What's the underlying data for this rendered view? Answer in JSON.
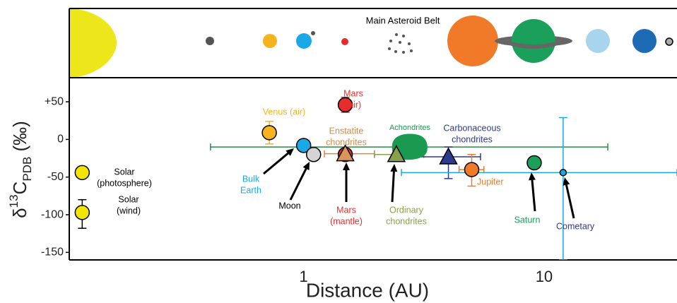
{
  "chart_data": {
    "type": "scatter",
    "banner_label": "Main Asteroid Belt",
    "xlabel": "Distance (AU)",
    "ylabel": [
      "δ",
      "13",
      "C",
      "PDB",
      " (‰)"
    ],
    "xscale": "log",
    "xlim": [
      0.106,
      35.7
    ],
    "ylim": [
      -160,
      82
    ],
    "xticks": [
      1,
      10
    ],
    "yticks": [
      {
        "value": 50,
        "label": "+50"
      },
      0,
      -50,
      -100,
      -150
    ],
    "points": [
      {
        "label": [
          "Solar",
          "(photosphere)"
        ],
        "x": 0.12,
        "y": -44,
        "marker": "circle",
        "color": "#f2e600",
        "label_color": "#000000"
      },
      {
        "label": [
          "Solar",
          "(wind)"
        ],
        "x": 0.12,
        "y": -97,
        "yrange": [
          -118,
          -80
        ],
        "marker": "circle",
        "color": "#f2e600",
        "label_color": "#000000",
        "err_color": "#000000"
      },
      {
        "label": [
          "Venus (air)"
        ],
        "x": 0.72,
        "y": 9,
        "yrange": [
          -6,
          24
        ],
        "marker": "circle",
        "color": "#f5b41e",
        "label_color": "#f5b41e",
        "err_color": "#f5b41e"
      },
      {
        "label": [
          "Mars",
          "(air)"
        ],
        "x": 1.49,
        "y": 46,
        "yrange": [
          36,
          56
        ],
        "marker": "circle",
        "color": "#e52d2d",
        "label_color": "#e52d2d",
        "err_color": "#e52d2d"
      },
      {
        "label": [
          "Bulk",
          "Earth"
        ],
        "x": 1.0,
        "y": -8,
        "marker": "circle",
        "color": "#1aa9e6",
        "label_color": "#1aa9e6"
      },
      {
        "label": [
          "Moon"
        ],
        "x": 1.1,
        "y": -20,
        "marker": "circle",
        "color": "#d4d4d4",
        "label_color": "#000000"
      },
      {
        "label": [
          "Mars",
          "(mantle)"
        ],
        "x": 1.49,
        "y": -20,
        "marker": "circle",
        "color": "#e52d2d",
        "label_color": "#e52d2d"
      },
      {
        "label": [
          "Enstatite",
          "chondrites"
        ],
        "x": 1.49,
        "y": -19,
        "xrange": [
          1.22,
          1.97
        ],
        "marker": "triangle",
        "color": "#d9955a",
        "label_color": "#d08a4a",
        "err_color": "#e0883a"
      },
      {
        "label": [
          "Achondrites"
        ],
        "x": 2.76,
        "y": -10,
        "xrange": [
          0.41,
          18.4
        ],
        "marker": "blob",
        "color": "#1a9a50",
        "label_color": "#1a9a50",
        "err_color": "#2a8a4a"
      },
      {
        "label": [
          "Ordinary",
          "chondrites"
        ],
        "x": 2.43,
        "y": -20,
        "xrange": [
          1.97,
          3.16
        ],
        "marker": "triangle",
        "color": "#8aa048",
        "label_color": "#8aa048",
        "err_color": "#8aa048"
      },
      {
        "label": [
          "Carbonaceous",
          "chondrites"
        ],
        "x": 4.0,
        "y": -23,
        "xrange": [
          2.58,
          5.44
        ],
        "yrange": [
          -52,
          -10
        ],
        "marker": "triangle",
        "color": "#2e3a8c",
        "label_color": "#2e3a8c",
        "err_color": "#2e3a8c"
      },
      {
        "label": [
          "Jupiter"
        ],
        "x": 5.0,
        "y": -40,
        "xrange": [
          4.43,
          5.62
        ],
        "yrange": [
          -62,
          -20
        ],
        "marker": "circle",
        "color": "#f07a28",
        "label_color": "#f07a28",
        "err_color": "#f07a28"
      },
      {
        "label": [
          "Saturn"
        ],
        "x": 9.1,
        "y": -31,
        "marker": "circle",
        "color": "#1aa05a",
        "label_color": "#1aa05a"
      },
      {
        "label": [
          "Cometary"
        ],
        "x": 12.0,
        "y": -44,
        "xrange": [
          2.55,
          35.7
        ],
        "yrange": [
          -160,
          29
        ],
        "marker": "small-circle",
        "color": "#1aa9e6",
        "label_color": "#2e3a8c",
        "err_color": "#1aa9e6"
      }
    ]
  }
}
